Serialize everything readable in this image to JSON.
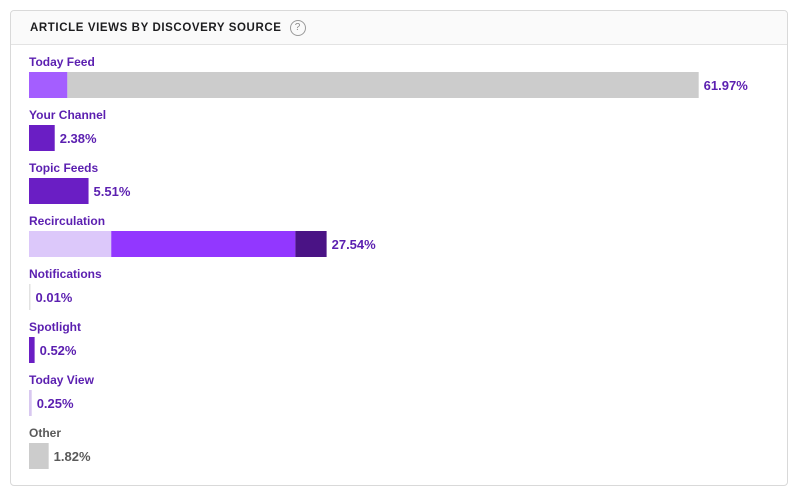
{
  "header": {
    "title": "ARTICLE VIEWS BY DISCOVERY SOURCE",
    "help_icon": "question-circle-icon"
  },
  "chart_data": {
    "type": "bar",
    "orientation": "horizontal",
    "title": "ARTICLE VIEWS BY DISCOVERY SOURCE",
    "xlabel": "",
    "ylabel": "",
    "xlim": [
      0,
      62
    ],
    "grid": false,
    "legend": "none",
    "categories": [
      "Today Feed",
      "Your Channel",
      "Topic Feeds",
      "Recirculation",
      "Notifications",
      "Spotlight",
      "Today View",
      "Other"
    ],
    "values": [
      61.97,
      2.38,
      5.51,
      27.54,
      0.01,
      0.52,
      0.25,
      1.82
    ],
    "value_labels": [
      "61.97%",
      "2.38%",
      "5.51%",
      "27.54%",
      "0.01%",
      "0.52%",
      "0.25%",
      "1.82%"
    ],
    "segments": [
      [
        {
          "value": 3.55,
          "color": "#a45eff"
        },
        {
          "value": 58.42,
          "color": "#cccccc"
        }
      ],
      [
        {
          "value": 2.38,
          "color": "#6a1ec4"
        }
      ],
      [
        {
          "value": 5.51,
          "color": "#6a1ec4"
        }
      ],
      [
        {
          "value": 7.61,
          "color": "#dcc8fa"
        },
        {
          "value": 17.04,
          "color": "#9237ff"
        },
        {
          "value": 2.89,
          "color": "#4a1385"
        }
      ],
      [
        {
          "value": 0.01,
          "color": "#e2e2e2"
        }
      ],
      [
        {
          "value": 0.52,
          "color": "#6a1ec4"
        }
      ],
      [
        {
          "value": 0.25,
          "color": "#d8c8f0"
        }
      ],
      [
        {
          "value": 1.82,
          "color": "#cccccc"
        }
      ]
    ],
    "label_colors": [
      "#5b1fb0",
      "#5b1fb0",
      "#5b1fb0",
      "#5b1fb0",
      "#5b1fb0",
      "#5b1fb0",
      "#5b1fb0",
      "#5a5a5a"
    ]
  }
}
